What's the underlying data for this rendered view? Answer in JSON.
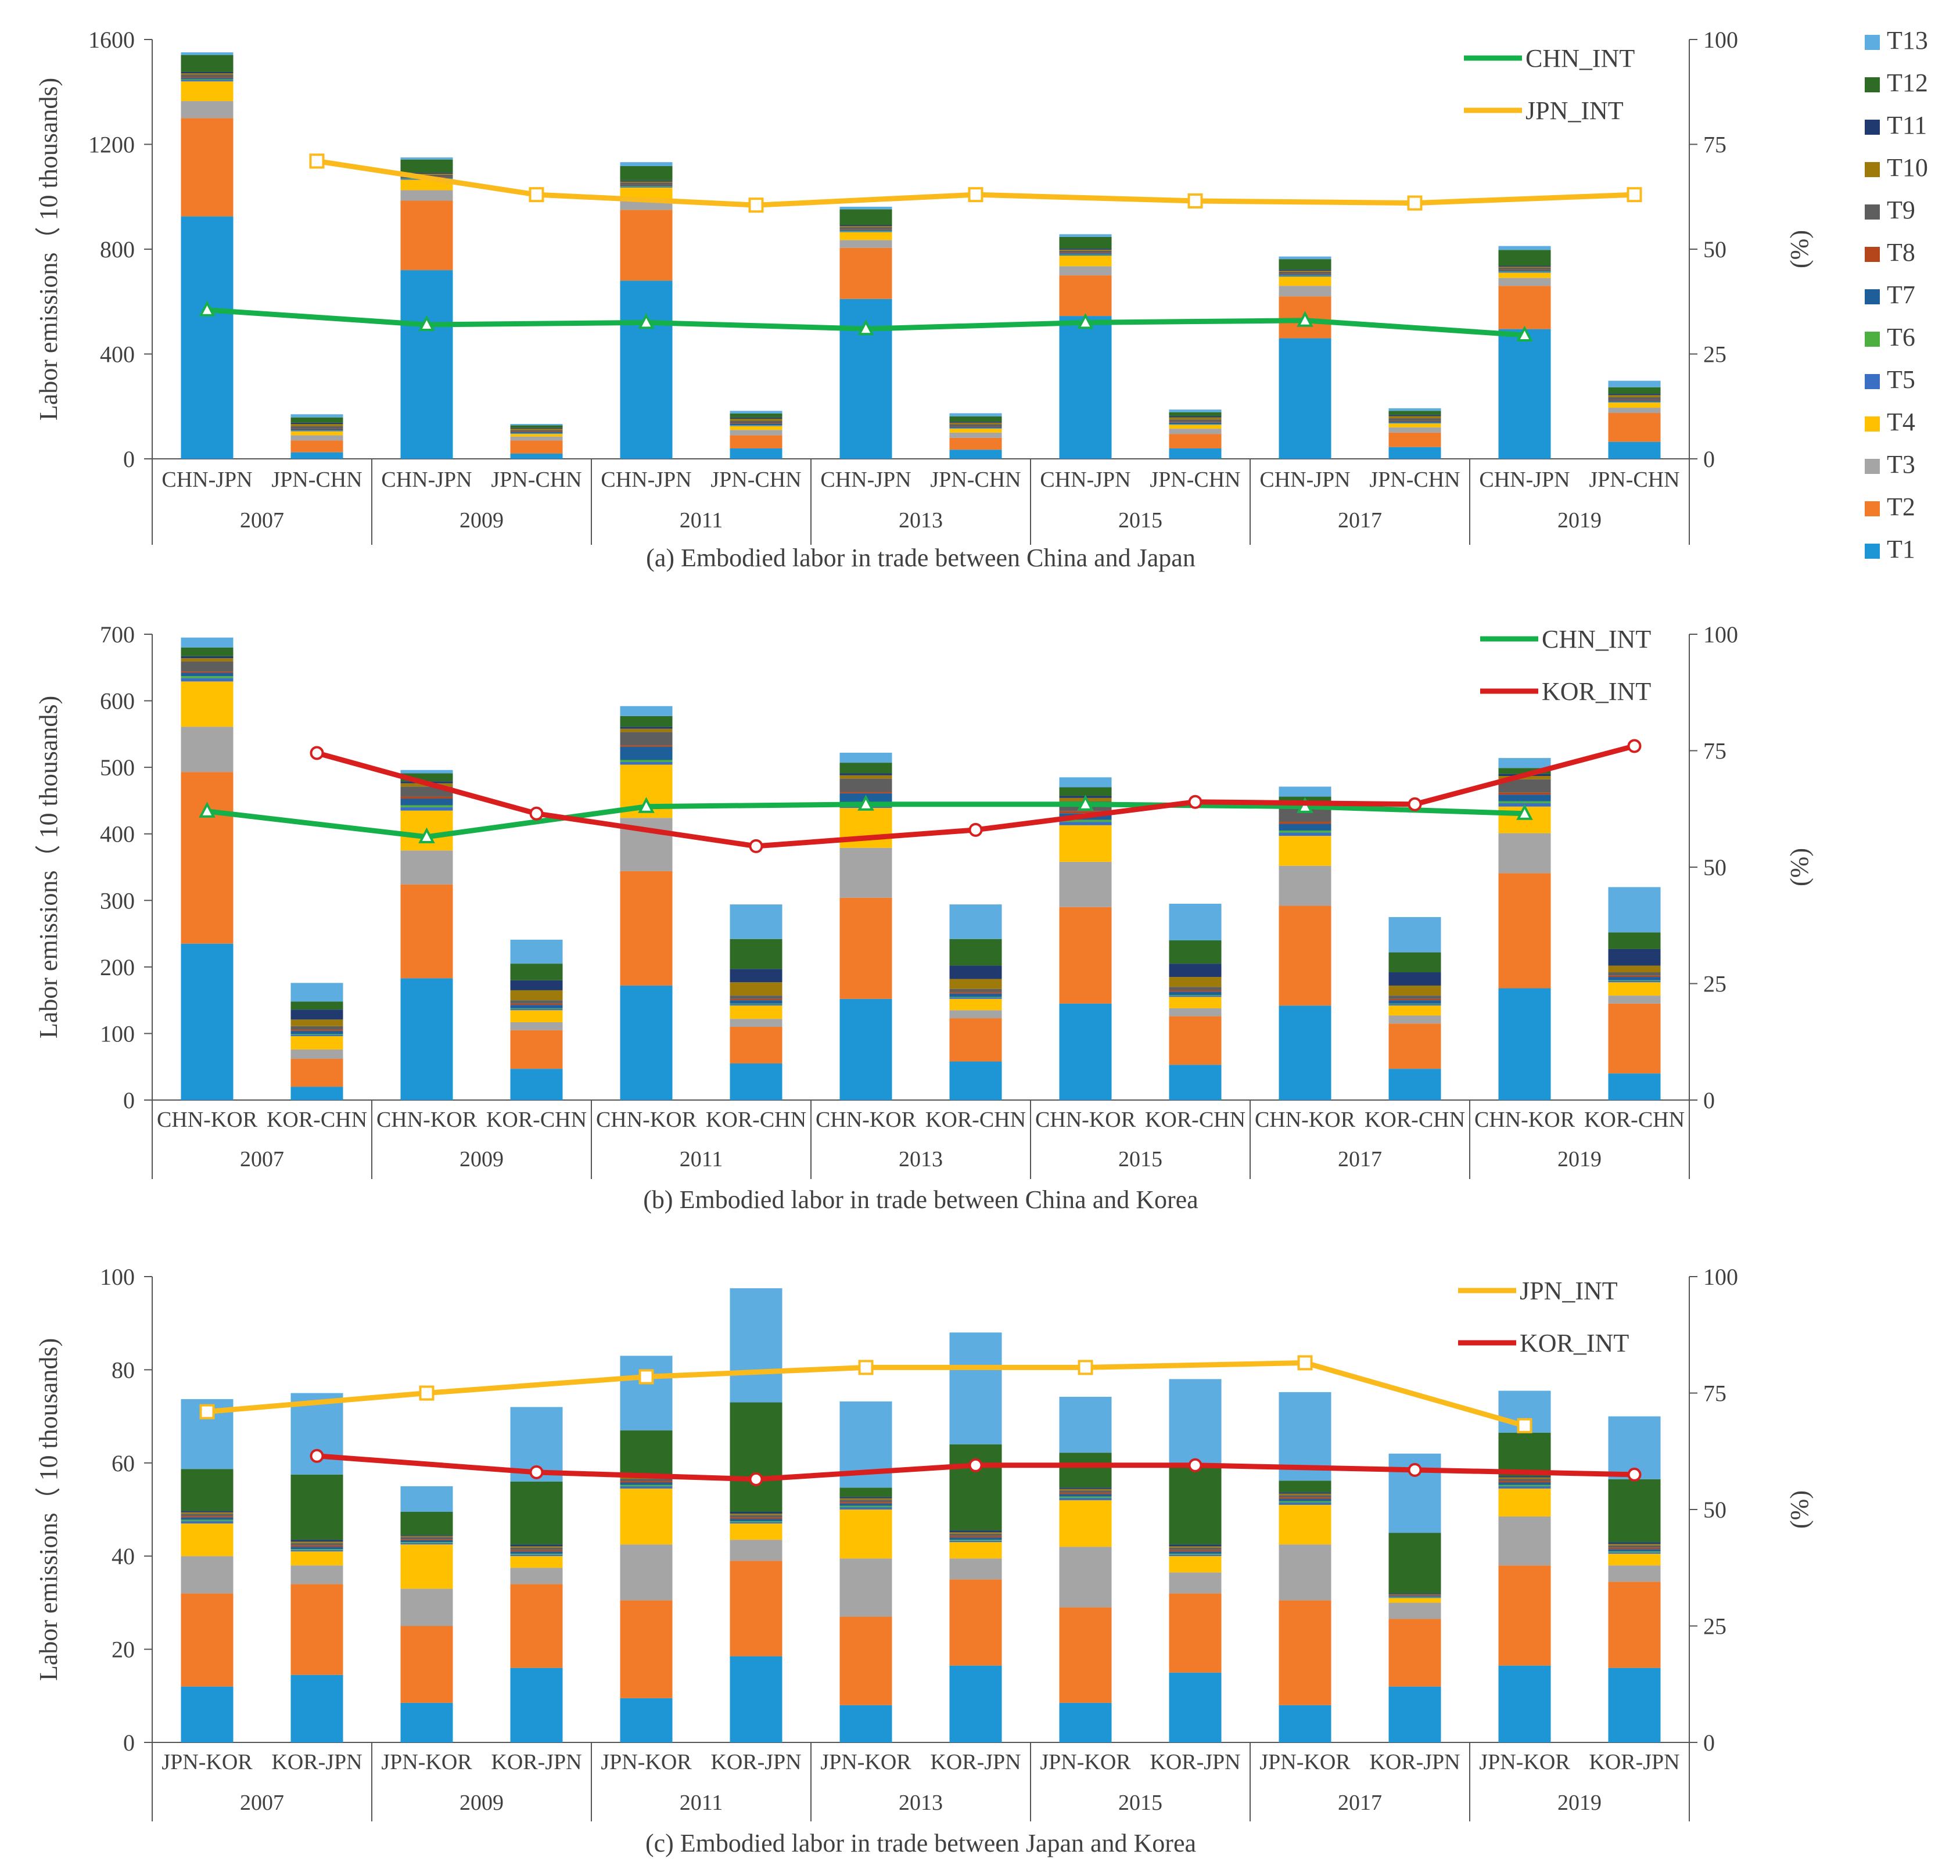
{
  "colors": {
    "T1": "#1E96D6",
    "T2": "#F27B2A",
    "T3": "#A5A5A5",
    "T4": "#FFC000",
    "T5": "#3B6FC4",
    "T6": "#4CAF3F",
    "T7": "#1F5F99",
    "T8": "#B5461B",
    "T9": "#5E5E5E",
    "T10": "#9E7A0A",
    "T11": "#203A70",
    "T12": "#2E6B24",
    "T13": "#5EADE0",
    "CHN_INT": "#16B04A",
    "JPN_INT": "#FBBA1B",
    "KOR_INT": "#D91E1E"
  },
  "legend": {
    "title": "",
    "items": [
      "T13",
      "T12",
      "T11",
      "T10",
      "T9",
      "T8",
      "T7",
      "T6",
      "T5",
      "T4",
      "T3",
      "T2",
      "T1"
    ]
  },
  "chart_data": [
    {
      "type": "bar",
      "stacked": true,
      "caption": "(a) Embodied labor in trade between China and Japan",
      "ylabel": "Labor emissions（ 10 thousands)",
      "y2label": "(%)",
      "ylim": [
        0,
        1600
      ],
      "yticks": [
        "0",
        "400",
        "800",
        "1200",
        "1600"
      ],
      "y2lim": [
        0,
        100
      ],
      "y2ticks": [
        "0",
        "25",
        "50",
        "75",
        "100"
      ],
      "years": [
        "2007",
        "2009",
        "2011",
        "2013",
        "2015",
        "2017",
        "2019"
      ],
      "categories": [
        "CHN-JPN",
        "JPN-CHN",
        "CHN-JPN",
        "JPN-CHN",
        "CHN-JPN",
        "JPN-CHN",
        "CHN-JPN",
        "JPN-CHN",
        "CHN-JPN",
        "JPN-CHN",
        "CHN-JPN",
        "JPN-CHN",
        "CHN-JPN",
        "JPN-CHN"
      ],
      "series": [
        {
          "name": "T1",
          "values": [
            925,
            25,
            720,
            20,
            680,
            40,
            610,
            35,
            545,
            40,
            460,
            45,
            495,
            65
          ]
        },
        {
          "name": "T2",
          "values": [
            375,
            45,
            265,
            50,
            270,
            50,
            195,
            45,
            155,
            55,
            160,
            55,
            165,
            110
          ]
        },
        {
          "name": "T3",
          "values": [
            65,
            20,
            40,
            15,
            40,
            20,
            30,
            20,
            35,
            20,
            40,
            20,
            30,
            20
          ]
        },
        {
          "name": "T4",
          "values": [
            75,
            15,
            40,
            10,
            45,
            15,
            30,
            15,
            40,
            15,
            35,
            15,
            20,
            20
          ]
        },
        {
          "name": "T5",
          "values": [
            5,
            2,
            3,
            2,
            3,
            2,
            3,
            2,
            3,
            2,
            3,
            2,
            3,
            2
          ]
        },
        {
          "name": "T6",
          "values": [
            3,
            1,
            2,
            1,
            2,
            1,
            2,
            1,
            2,
            1,
            2,
            1,
            2,
            1
          ]
        },
        {
          "name": "T7",
          "values": [
            5,
            5,
            4,
            4,
            4,
            5,
            4,
            4,
            4,
            5,
            4,
            5,
            4,
            5
          ]
        },
        {
          "name": "T8",
          "values": [
            3,
            2,
            2,
            2,
            2,
            2,
            2,
            2,
            2,
            2,
            2,
            2,
            2,
            2
          ]
        },
        {
          "name": "T9",
          "values": [
            10,
            10,
            8,
            6,
            8,
            10,
            8,
            8,
            8,
            10,
            8,
            10,
            8,
            10
          ]
        },
        {
          "name": "T10",
          "values": [
            5,
            8,
            4,
            5,
            4,
            8,
            4,
            6,
            4,
            8,
            4,
            8,
            4,
            8
          ]
        },
        {
          "name": "T11",
          "values": [
            5,
            5,
            4,
            3,
            4,
            5,
            4,
            4,
            4,
            5,
            4,
            5,
            4,
            5
          ]
        },
        {
          "name": "T12",
          "values": [
            65,
            20,
            50,
            10,
            55,
            15,
            60,
            20,
            45,
            15,
            40,
            15,
            60,
            25
          ]
        },
        {
          "name": "T13",
          "values": [
            10,
            12,
            8,
            5,
            15,
            10,
            10,
            12,
            10,
            10,
            10,
            10,
            15,
            25
          ]
        }
      ],
      "lines": [
        {
          "name": "CHN_INT",
          "marker": "triangle",
          "points": [
            [
              0,
              35.5
            ],
            [
              2,
              32
            ],
            [
              4,
              32.5
            ],
            [
              6,
              31
            ],
            [
              8,
              32.5
            ],
            [
              10,
              33
            ],
            [
              12,
              29.5
            ]
          ]
        },
        {
          "name": "JPN_INT",
          "marker": "square",
          "points": [
            [
              1,
              71
            ],
            [
              3,
              63
            ],
            [
              5,
              60.5
            ],
            [
              7,
              63
            ],
            [
              9,
              61.5
            ],
            [
              11,
              61
            ],
            [
              13,
              63
            ]
          ]
        }
      ]
    },
    {
      "type": "bar",
      "stacked": true,
      "caption": "(b) Embodied labor in trade between China and Korea",
      "ylabel": "Labor emissions（ 10 thousands)",
      "y2label": "(%)",
      "ylim": [
        0,
        700
      ],
      "yticks": [
        "0",
        "100",
        "200",
        "300",
        "400",
        "500",
        "600",
        "700"
      ],
      "y2lim": [
        0,
        100
      ],
      "y2ticks": [
        "0",
        "25",
        "50",
        "75",
        "100"
      ],
      "years": [
        "2007",
        "2009",
        "2011",
        "2013",
        "2015",
        "2017",
        "2019"
      ],
      "categories": [
        "CHN-KOR",
        "KOR-CHN",
        "CHN-KOR",
        "KOR-CHN",
        "CHN-KOR",
        "KOR-CHN",
        "CHN-KOR",
        "KOR-CHN",
        "CHN-KOR",
        "KOR-CHN",
        "CHN-KOR",
        "KOR-CHN",
        "CHN-KOR",
        "KOR-CHN"
      ],
      "series": [
        {
          "name": "T1",
          "values": [
            235,
            20,
            183,
            47,
            172,
            55,
            152,
            58,
            145,
            53,
            142,
            47,
            168,
            40
          ]
        },
        {
          "name": "T2",
          "values": [
            258,
            42,
            141,
            58,
            172,
            55,
            152,
            65,
            145,
            73,
            150,
            68,
            173,
            105
          ]
        },
        {
          "name": "T3",
          "values": [
            68,
            14,
            51,
            12,
            80,
            12,
            75,
            12,
            68,
            12,
            60,
            12,
            60,
            12
          ]
        },
        {
          "name": "T4",
          "values": [
            68,
            20,
            60,
            18,
            80,
            20,
            60,
            17,
            55,
            17,
            45,
            15,
            40,
            20
          ]
        },
        {
          "name": "T5",
          "values": [
            5,
            2,
            5,
            2,
            4,
            2,
            4,
            2,
            5,
            2,
            5,
            2,
            5,
            2
          ]
        },
        {
          "name": "T6",
          "values": [
            3,
            1,
            3,
            1,
            3,
            1,
            3,
            1,
            3,
            1,
            3,
            1,
            3,
            1
          ]
        },
        {
          "name": "T7",
          "values": [
            5,
            5,
            10,
            5,
            20,
            5,
            15,
            5,
            10,
            5,
            10,
            5,
            10,
            5
          ]
        },
        {
          "name": "T8",
          "values": [
            2,
            2,
            3,
            2,
            2,
            2,
            2,
            2,
            3,
            2,
            3,
            2,
            3,
            2
          ]
        },
        {
          "name": "T9",
          "values": [
            15,
            5,
            15,
            5,
            20,
            5,
            20,
            5,
            15,
            5,
            20,
            5,
            20,
            5
          ]
        },
        {
          "name": "T10",
          "values": [
            5,
            10,
            5,
            15,
            5,
            20,
            5,
            15,
            5,
            15,
            5,
            15,
            5,
            10
          ]
        },
        {
          "name": "T11",
          "values": [
            3,
            15,
            3,
            15,
            3,
            20,
            3,
            20,
            3,
            20,
            3,
            20,
            3,
            25
          ]
        },
        {
          "name": "T12",
          "values": [
            13,
            12,
            12,
            25,
            16,
            45,
            16,
            40,
            13,
            35,
            10,
            30,
            9,
            25
          ]
        },
        {
          "name": "T13",
          "values": [
            15,
            28,
            5,
            36,
            15,
            52,
            15,
            52,
            15,
            55,
            15,
            53,
            15,
            68
          ]
        }
      ],
      "lines": [
        {
          "name": "CHN_INT",
          "marker": "triangle",
          "points": [
            [
              0,
              62
            ],
            [
              2,
              56.5
            ],
            [
              4,
              63
            ],
            [
              6,
              63.5
            ],
            [
              8,
              63.5
            ],
            [
              10,
              63
            ],
            [
              12,
              61.5
            ]
          ]
        },
        {
          "name": "KOR_INT",
          "marker": "circle",
          "points": [
            [
              1,
              74.5
            ],
            [
              3,
              61.5
            ],
            [
              5,
              54.5
            ],
            [
              7,
              58
            ],
            [
              9,
              64
            ],
            [
              11,
              63.5
            ],
            [
              13,
              76
            ]
          ]
        }
      ]
    },
    {
      "type": "bar",
      "stacked": true,
      "caption": "(c) Embodied labor in trade between Japan and Korea",
      "ylabel": "Labor emissions（ 10 thousands)",
      "y2label": "(%)",
      "ylim": [
        0,
        100
      ],
      "yticks": [
        "0",
        "20",
        "40",
        "60",
        "80",
        "100"
      ],
      "y2lim": [
        0,
        100
      ],
      "y2ticks": [
        "0",
        "25",
        "50",
        "75",
        "100"
      ],
      "years": [
        "2007",
        "2009",
        "2011",
        "2013",
        "2015",
        "2017",
        "2019"
      ],
      "categories": [
        "JPN-KOR",
        "KOR-JPN",
        "JPN-KOR",
        "KOR-JPN",
        "JPN-KOR",
        "KOR-JPN",
        "JPN-KOR",
        "KOR-JPN",
        "JPN-KOR",
        "KOR-JPN",
        "JPN-KOR",
        "KOR-JPN",
        "JPN-KOR",
        "KOR-JPN"
      ],
      "series": [
        {
          "name": "T1",
          "values": [
            12,
            14.5,
            8.5,
            16,
            9.5,
            18.5,
            8,
            16.5,
            8.5,
            15,
            8,
            12,
            16.5,
            16
          ]
        },
        {
          "name": "T2",
          "values": [
            20,
            19.5,
            16.5,
            18,
            21,
            20.5,
            19,
            18.5,
            20.5,
            17,
            22.5,
            14.5,
            21.5,
            18.5
          ]
        },
        {
          "name": "T3",
          "values": [
            8,
            4,
            8,
            3.5,
            12,
            4.5,
            12.5,
            4.5,
            13,
            4.5,
            12,
            3.5,
            10.5,
            3.5
          ]
        },
        {
          "name": "T4",
          "values": [
            7,
            3,
            9.5,
            2.5,
            12,
            3.5,
            10.5,
            3.5,
            10,
            3.5,
            8.5,
            1,
            6,
            2.5
          ]
        },
        {
          "name": "T5",
          "values": [
            0.5,
            0.3,
            0.3,
            0.3,
            0.5,
            0.3,
            0.5,
            0.3,
            0.5,
            0.3,
            0.5,
            0.1,
            0.5,
            0.3
          ]
        },
        {
          "name": "T6",
          "values": [
            0.3,
            0.2,
            0.2,
            0.2,
            0.3,
            0.2,
            0.3,
            0.2,
            0.3,
            0.2,
            0.3,
            0.1,
            0.3,
            0.2
          ]
        },
        {
          "name": "T7",
          "values": [
            0.5,
            0.5,
            0.4,
            0.5,
            0.5,
            0.5,
            0.5,
            0.5,
            0.5,
            0.5,
            0.5,
            0.2,
            0.5,
            0.5
          ]
        },
        {
          "name": "T8",
          "values": [
            0.3,
            0.3,
            0.2,
            0.3,
            0.3,
            0.3,
            0.3,
            0.3,
            0.3,
            0.3,
            0.3,
            0.1,
            0.3,
            0.3
          ]
        },
        {
          "name": "T9",
          "values": [
            0.5,
            0.5,
            0.5,
            0.5,
            0.5,
            0.5,
            0.5,
            0.5,
            0.5,
            0.5,
            0.5,
            0.2,
            0.5,
            0.5
          ]
        },
        {
          "name": "T10",
          "values": [
            0.3,
            0.3,
            0.2,
            0.3,
            0.3,
            0.3,
            0.3,
            0.3,
            0.3,
            0.3,
            0.3,
            0.1,
            0.3,
            0.3
          ]
        },
        {
          "name": "T11",
          "values": [
            0.3,
            0.4,
            0.2,
            0.4,
            0.3,
            0.4,
            0.3,
            0.4,
            0.3,
            0.4,
            0.3,
            0.2,
            0.3,
            0.4
          ]
        },
        {
          "name": "T12",
          "values": [
            9,
            14,
            5,
            13.5,
            9.8,
            23.5,
            2,
            18.5,
            7.5,
            17,
            2.5,
            13,
            9.3,
            13.5
          ]
        },
        {
          "name": "T13",
          "values": [
            15,
            17.5,
            5.5,
            16,
            16,
            24.5,
            18.5,
            24,
            12,
            18.5,
            19,
            17,
            9,
            13.5
          ]
        }
      ],
      "lines": [
        {
          "name": "JPN_INT",
          "marker": "square",
          "points": [
            [
              0,
              71
            ],
            [
              2,
              75
            ],
            [
              4,
              78.5
            ],
            [
              6,
              80.5
            ],
            [
              8,
              80.5
            ],
            [
              10,
              81.5
            ],
            [
              12,
              68
            ]
          ]
        },
        {
          "name": "KOR_INT",
          "marker": "circle",
          "points": [
            [
              1,
              61.5
            ],
            [
              3,
              58
            ],
            [
              5,
              56.5
            ],
            [
              7,
              59.5
            ],
            [
              9,
              59.5
            ],
            [
              11,
              58.5
            ],
            [
              13,
              57.5
            ]
          ]
        }
      ]
    }
  ]
}
